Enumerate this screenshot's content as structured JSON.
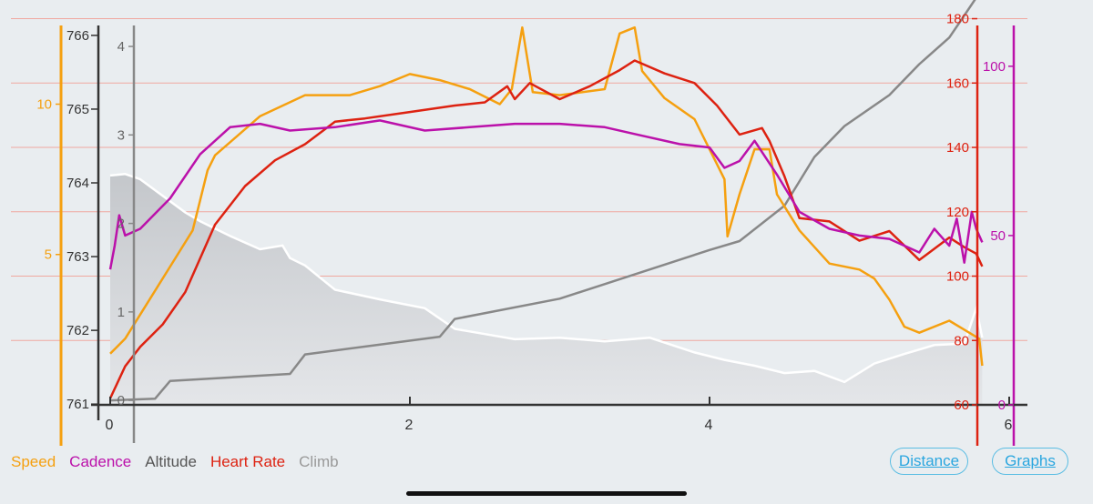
{
  "chart_data": {
    "type": "line",
    "x_ticks": [
      "0",
      "2",
      "4",
      "6"
    ],
    "xlim": [
      0,
      6
    ],
    "axes": {
      "altitude": {
        "ticks": [
          "761",
          "762",
          "763",
          "764",
          "765",
          "766"
        ],
        "ylim": [
          760.99,
          766.27
        ]
      },
      "speed": {
        "ticks": [
          "5",
          "10"
        ],
        "ylim": [
          0,
          12.95
        ]
      },
      "climb": {
        "ticks": [
          "0",
          "1",
          "2",
          "3",
          "4"
        ],
        "ylim": [
          -0.05,
          4.35
        ]
      },
      "heart_rate": {
        "ticks": [
          "60",
          "80",
          "100",
          "120",
          "140",
          "160",
          "180"
        ],
        "ylim": [
          60,
          181
        ]
      },
      "cadence": {
        "ticks": [
          "0",
          "50",
          "100"
        ],
        "ylim": [
          0,
          115
        ]
      }
    },
    "series": [
      {
        "name": "Altitude",
        "axis": "altitude",
        "style": "area",
        "color": "#ffffff",
        "x": [
          0,
          0.1,
          0.2,
          0.3,
          0.5,
          0.6,
          0.8,
          1.0,
          1.15,
          1.2,
          1.3,
          1.5,
          1.8,
          2.1,
          2.3,
          2.5,
          2.7,
          3.0,
          3.3,
          3.6,
          3.9,
          4.1,
          4.3,
          4.5,
          4.7,
          4.9,
          5.1,
          5.3,
          5.5,
          5.7,
          5.78,
          5.82
        ],
        "y": [
          764.1,
          764.12,
          764.05,
          763.9,
          763.6,
          763.48,
          763.28,
          763.1,
          763.15,
          762.98,
          762.88,
          762.55,
          762.42,
          762.3,
          762.02,
          761.95,
          761.88,
          761.9,
          761.85,
          761.9,
          761.7,
          761.6,
          761.52,
          761.42,
          761.45,
          761.3,
          761.55,
          761.68,
          761.8,
          761.82,
          762.3,
          761.9
        ]
      },
      {
        "name": "Climb",
        "axis": "climb",
        "color": "#888888",
        "x": [
          0,
          0.3,
          0.4,
          1.2,
          1.3,
          2.2,
          2.3,
          3.0,
          4.0,
          4.2,
          4.5,
          4.7,
          4.9,
          5.2,
          5.4,
          5.6,
          5.7,
          5.78,
          5.82
        ],
        "y": [
          0,
          0.02,
          0.22,
          0.3,
          0.52,
          0.72,
          0.92,
          1.15,
          1.7,
          1.8,
          2.2,
          2.75,
          3.1,
          3.45,
          3.8,
          4.1,
          4.35,
          4.55,
          4.6
        ]
      },
      {
        "name": "Speed",
        "axis": "speed",
        "color": "#f5a010",
        "x": [
          0,
          0.1,
          0.2,
          0.4,
          0.55,
          0.6,
          0.65,
          0.7,
          1.0,
          1.3,
          1.6,
          1.8,
          2.0,
          2.2,
          2.4,
          2.6,
          2.68,
          2.75,
          2.82,
          3.0,
          3.3,
          3.4,
          3.5,
          3.55,
          3.7,
          3.9,
          4.0,
          4.1,
          4.12,
          4.2,
          4.3,
          4.4,
          4.45,
          4.6,
          4.8,
          5.0,
          5.1,
          5.2,
          5.3,
          5.4,
          5.6,
          5.7,
          5.8,
          5.82
        ],
        "y": [
          1.7,
          2.2,
          3.0,
          4.6,
          5.8,
          6.8,
          7.8,
          8.3,
          9.6,
          10.3,
          10.3,
          10.6,
          11.0,
          10.8,
          10.5,
          10.0,
          10.5,
          12.55,
          10.4,
          10.3,
          10.5,
          12.35,
          12.55,
          11.1,
          10.2,
          9.5,
          8.5,
          7.5,
          5.6,
          7.0,
          8.5,
          8.5,
          7.0,
          5.8,
          4.7,
          4.5,
          4.2,
          3.5,
          2.6,
          2.4,
          2.8,
          2.5,
          2.2,
          1.3
        ]
      },
      {
        "name": "Heart Rate",
        "axis": "heart_rate",
        "color": "#dd2211",
        "x": [
          0,
          0.1,
          0.2,
          0.35,
          0.5,
          0.7,
          0.9,
          1.1,
          1.3,
          1.5,
          1.7,
          2.0,
          2.3,
          2.5,
          2.65,
          2.7,
          2.8,
          3.0,
          3.2,
          3.4,
          3.5,
          3.7,
          3.9,
          4.05,
          4.2,
          4.35,
          4.4,
          4.5,
          4.6,
          4.8,
          5.0,
          5.2,
          5.4,
          5.6,
          5.7,
          5.78,
          5.82
        ],
        "y": [
          62,
          72,
          78,
          85,
          95,
          116,
          128,
          136,
          141,
          148,
          149,
          151,
          153,
          154,
          159,
          155,
          160,
          155,
          159,
          164,
          167,
          163,
          160,
          153,
          144,
          146,
          142,
          131,
          118,
          117,
          111,
          114,
          105,
          112,
          109,
          107,
          103
        ]
      },
      {
        "name": "Cadence",
        "axis": "cadence",
        "color": "#bb11aa",
        "x": [
          0,
          0.03,
          0.06,
          0.1,
          0.2,
          0.4,
          0.6,
          0.8,
          1.0,
          1.2,
          1.5,
          1.8,
          2.1,
          2.4,
          2.7,
          3.0,
          3.3,
          3.5,
          3.8,
          4.0,
          4.1,
          4.2,
          4.3,
          4.45,
          4.6,
          4.8,
          5.0,
          5.2,
          5.4,
          5.5,
          5.6,
          5.65,
          5.7,
          5.75,
          5.78,
          5.82
        ],
        "y": [
          40,
          47,
          56,
          50,
          52,
          61,
          74,
          82,
          83,
          81,
          82,
          84,
          81,
          82,
          83,
          83,
          82,
          80,
          77,
          76,
          70,
          72,
          78,
          68,
          57,
          52,
          50,
          49,
          45,
          52,
          47,
          55,
          42,
          57,
          52,
          48
        ]
      }
    ],
    "legend": [
      "Speed",
      "Cadence",
      "Altitude",
      "Heart Rate",
      "Climb"
    ],
    "legend_placement": "bottom-left",
    "grid": "horizontal heart-rate gridlines"
  },
  "legend_colors": {
    "Speed": "#f5a010",
    "Cadence": "#bb11aa",
    "Altitude": "#555555",
    "Heart Rate": "#dd2211",
    "Climb": "#999999"
  },
  "buttons": {
    "distance": "Distance",
    "graphs": "Graphs"
  }
}
